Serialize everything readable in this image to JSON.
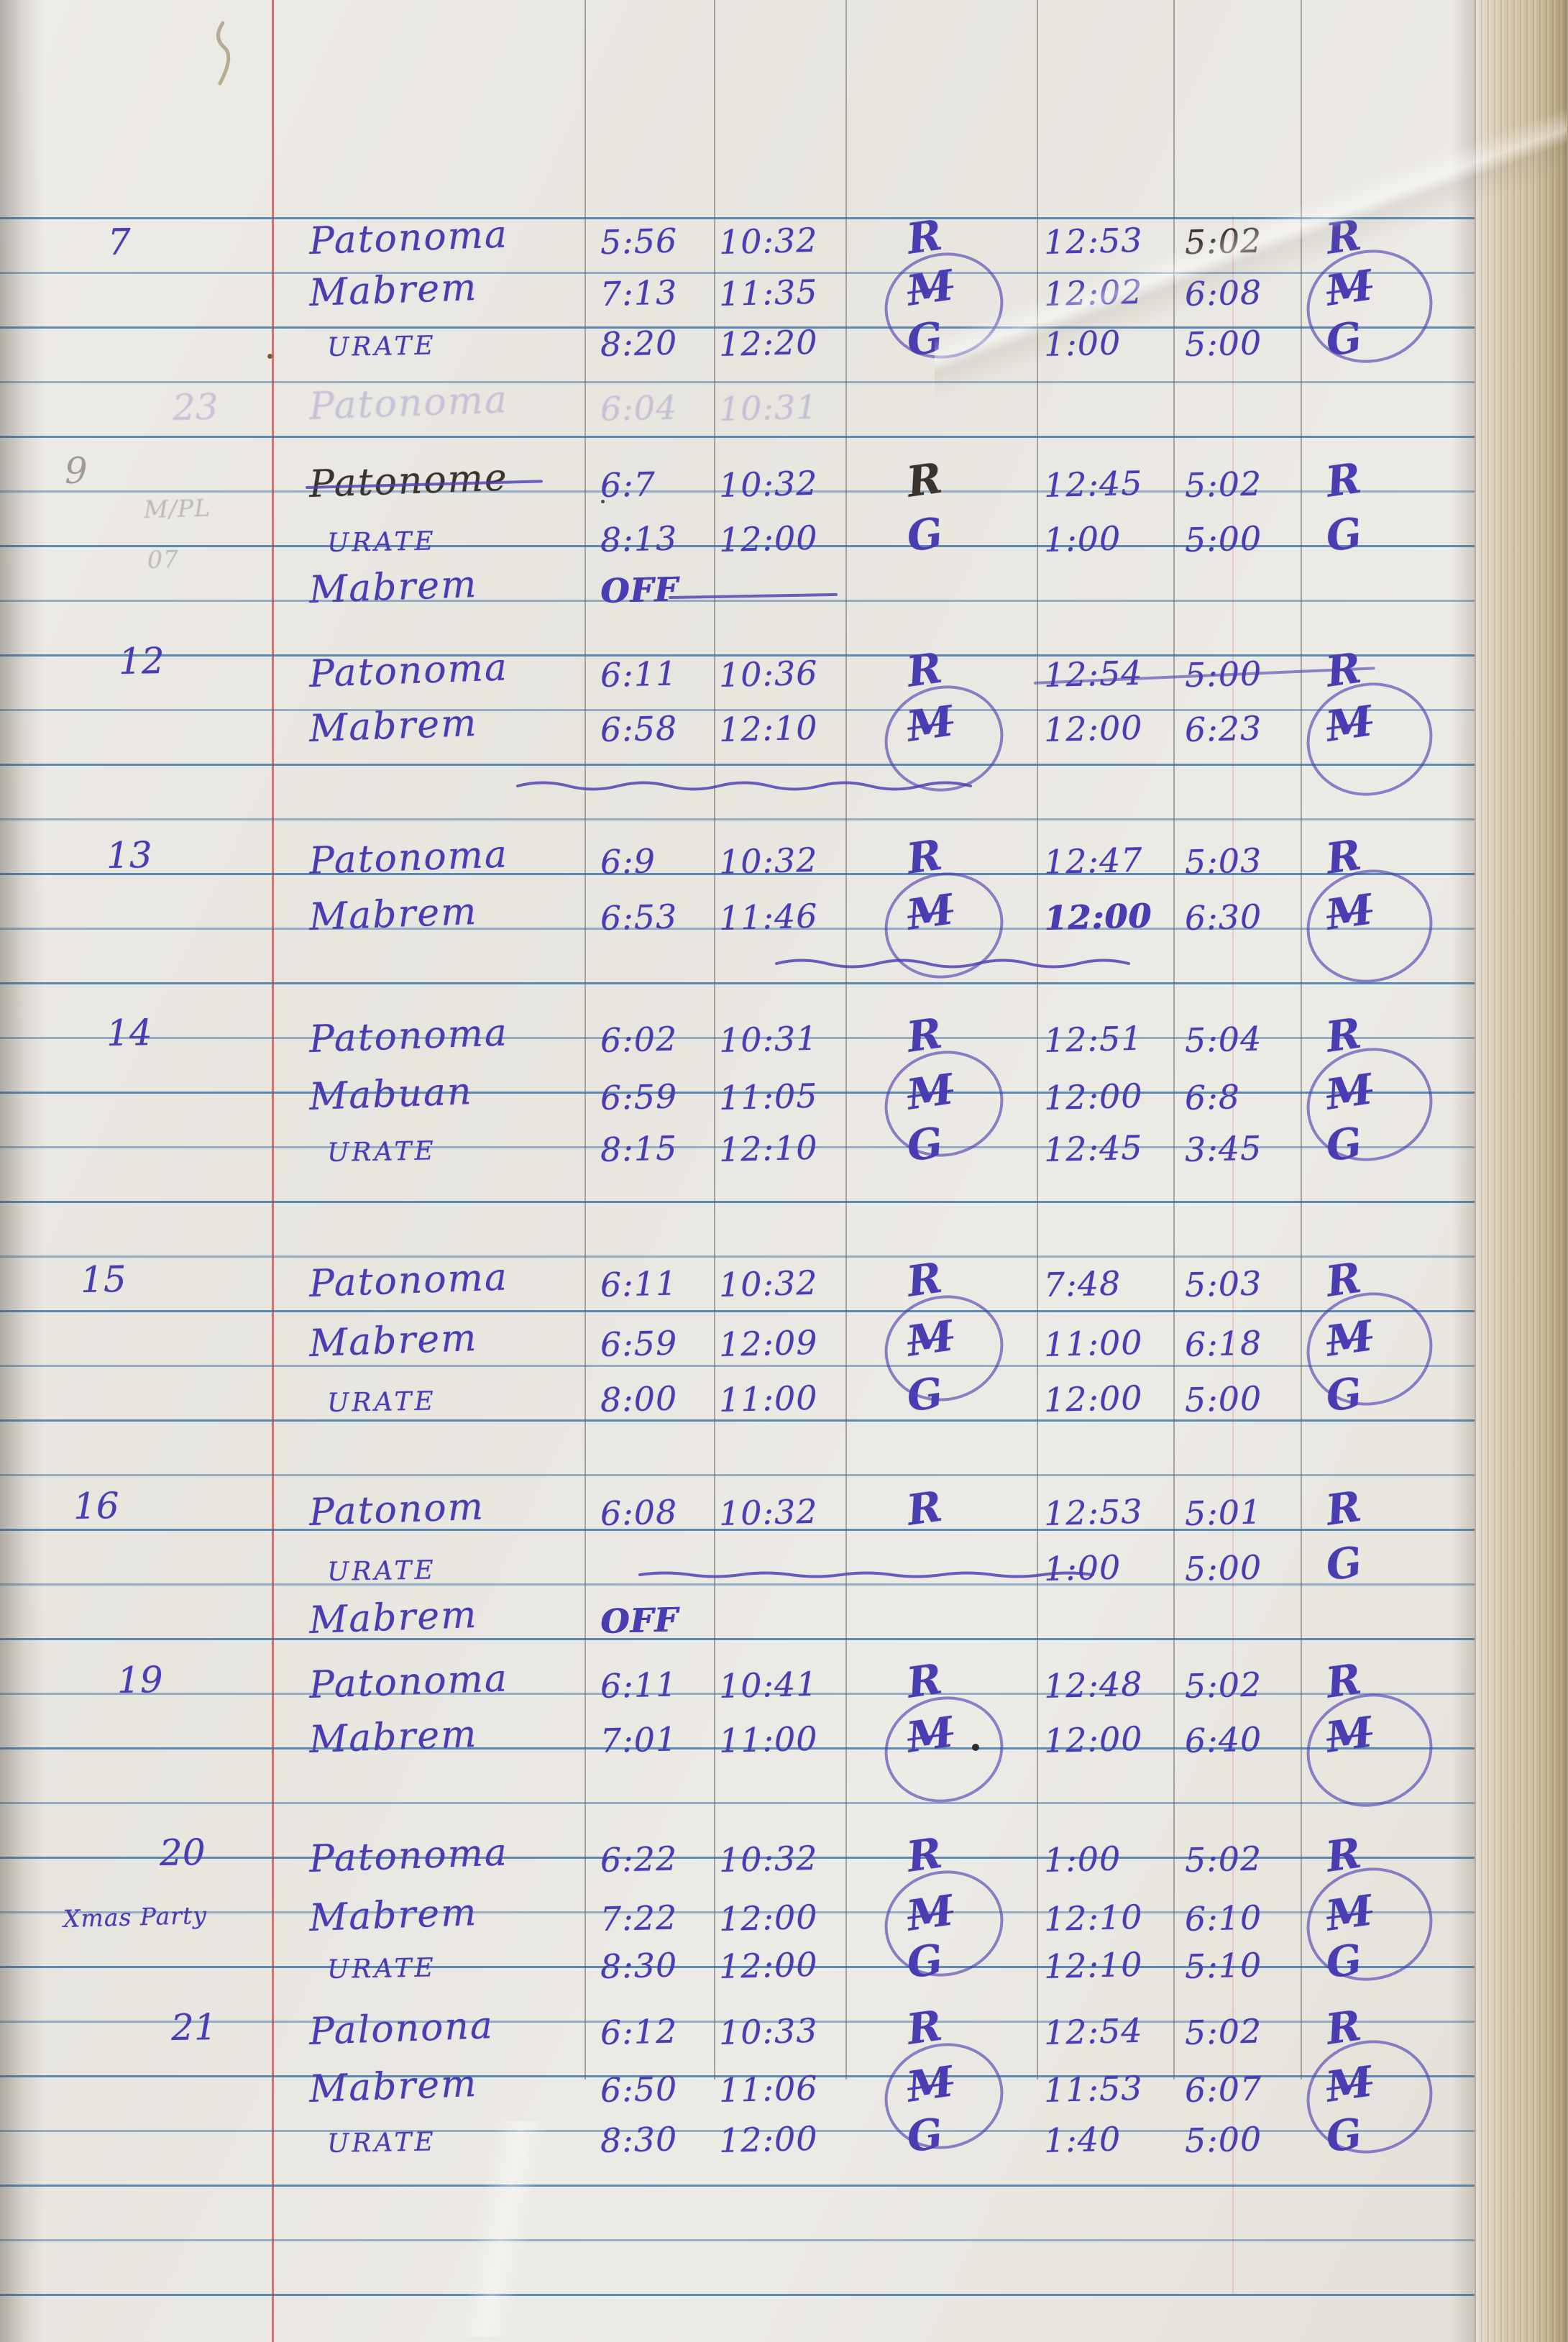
{
  "document": {
    "kind": "handwritten notebook time log page"
  },
  "colors": {
    "paper": "#eae7e1",
    "ruled_line": "#3470a8",
    "margin_line": "#d65055",
    "ink": "#4a3db2",
    "dark_ink": "#3a342f",
    "pencil": "#8a8782",
    "page_edge": "#d8cab0",
    "edge_line_teal": "#0d6878"
  },
  "log": {
    "entries": [
      {
        "day": "7",
        "loops": true,
        "rows": [
          {
            "name": "Patonoma",
            "t1": "5:56",
            "t2": "10:32",
            "s1": "R",
            "t3": "12:53",
            "t4": "5:02",
            "s2": "R",
            "t4_dark": true
          },
          {
            "name": "Mabrem",
            "t1": "7:13",
            "t2": "11:35",
            "s1": "M",
            "t3": "12:02",
            "t4": "6:08",
            "s2": "M"
          },
          {
            "name": "URATE",
            "t1": "8:20",
            "t2": "12:20",
            "s1": "G",
            "t3": "1:00",
            "t4": "5:00",
            "s2": "G"
          }
        ]
      },
      {
        "day": "9",
        "day_pencil": true,
        "rows": [
          {
            "name": "Patonome",
            "name_dark": true,
            "name_strike": true,
            "t1": "6:7",
            "t2": "10:32",
            "s1": "R",
            "s1_dark": true,
            "t3": "12:45",
            "t4": "5:02",
            "s2": "R"
          },
          {
            "name": "URATE",
            "t1": "8:13",
            "t2": "12:00",
            "s1": "G",
            "t3": "1:00",
            "t4": "5:00",
            "s2": "G"
          },
          {
            "name": "Mabrem",
            "t1": "OFF",
            "off_dash": true
          }
        ]
      },
      {
        "day": "12",
        "loops": true,
        "squiggle_below": true,
        "rows": [
          {
            "name": "Patonoma",
            "t1": "6:11",
            "t2": "10:36",
            "s1": "R",
            "t3": "12:54",
            "t4": "5:00",
            "s2": "R",
            "right_strike": true
          },
          {
            "name": "Mabrem",
            "t1": "6:58",
            "t2": "12:10",
            "s1": "M",
            "t3": "12:00",
            "t4": "6:23",
            "s2": "M"
          }
        ]
      },
      {
        "day": "13",
        "loops": true,
        "squiggle_below": true,
        "rows": [
          {
            "name": "Patonoma",
            "t1": "6:9",
            "t2": "10:32",
            "s1": "R",
            "t3": "12:47",
            "t4": "5:03",
            "s2": "R"
          },
          {
            "name": "Mabrem",
            "t1": "6:53",
            "t2": "11:46",
            "s1": "M",
            "t3": "12:00",
            "t3_bold": true,
            "t4": "6:30",
            "s2": "M"
          }
        ]
      },
      {
        "day": "14",
        "loops": true,
        "rows": [
          {
            "name": "Patonoma",
            "t1": "6:02",
            "t2": "10:31",
            "s1": "R",
            "t3": "12:51",
            "t4": "5:04",
            "s2": "R"
          },
          {
            "name": "Mabuan",
            "t1": "6:59",
            "t2": "11:05",
            "s1": "M",
            "t3": "12:00",
            "t4": "6:8",
            "s2": "M"
          },
          {
            "name": "URATE",
            "t1": "8:15",
            "t2": "12:10",
            "s1": "G",
            "t3": "12:45",
            "t4": "3:45",
            "s2": "G"
          }
        ]
      },
      {
        "day": "15",
        "loops": true,
        "rows": [
          {
            "name": "Patonoma",
            "t1": "6:11",
            "t2": "10:32",
            "s1": "R",
            "t3": "7:48",
            "t4": "5:03",
            "s2": "R"
          },
          {
            "name": "Mabrem",
            "t1": "6:59",
            "t2": "12:09",
            "s1": "M",
            "t3": "11:00",
            "t4": "6:18",
            "s2": "M"
          },
          {
            "name": "URATE",
            "t1": "8:00",
            "t2": "11:00",
            "s1": "G",
            "t3": "12:00",
            "t4": "5:00",
            "s2": "G"
          }
        ]
      },
      {
        "day": "16",
        "rows": [
          {
            "name": "Patonom",
            "t1": "6:08",
            "t2": "10:32",
            "s1": "R",
            "t3": "12:53",
            "t4": "5:01",
            "s2": "R"
          },
          {
            "name": "URATE",
            "t2_dash": true,
            "t3": "1:00",
            "t4": "5:00",
            "s2": "G"
          },
          {
            "name": "Mabrem",
            "t1": "OFF"
          }
        ]
      },
      {
        "day": "19",
        "loops": true,
        "rows": [
          {
            "name": "Patonoma",
            "t1": "6:11",
            "t2": "10:41",
            "s1": "R",
            "t3": "12:48",
            "t4": "5:02",
            "s2": "R"
          },
          {
            "name": "Mabrem",
            "t1": "7:01",
            "t2": "11:00",
            "s1": "M",
            "t3": "12:00",
            "t4": "6:40",
            "s2": "M"
          }
        ]
      },
      {
        "day": "20",
        "note": "Xmas Party",
        "loops": true,
        "rows": [
          {
            "name": "Patonoma",
            "t1": "6:22",
            "t2": "10:32",
            "s1": "R",
            "t3": "1:00",
            "t4": "5:02",
            "s2": "R"
          },
          {
            "name": "Mabrem",
            "t1": "7:22",
            "t2": "12:00",
            "s1": "M",
            "t3": "12:10",
            "t4": "6:10",
            "s2": "M"
          },
          {
            "name": "URATE",
            "t1": "8:30",
            "t2": "12:00",
            "s1": "G",
            "t3": "12:10",
            "t4": "5:10",
            "s2": "G"
          }
        ]
      },
      {
        "day": "21",
        "loops": true,
        "rows": [
          {
            "name": "Palonona",
            "t1": "6:12",
            "t2": "10:33",
            "s1": "R",
            "t3": "12:54",
            "t4": "5:02",
            "s2": "R"
          },
          {
            "name": "Mabrem",
            "t1": "6:50",
            "t2": "11:06",
            "s1": "M",
            "t3": "11:53",
            "t4": "6:07",
            "s2": "M"
          },
          {
            "name": "URATE",
            "t1": "8:30",
            "t2": "12:00",
            "s1": "G",
            "t3": "1:40",
            "t4": "5:00",
            "s2": "G"
          }
        ]
      }
    ]
  },
  "ghosts": {
    "bleedthrough_entry": {
      "day": "23",
      "name": "Patonoma",
      "t1": "6:04",
      "t2": "10:31"
    },
    "pencil_marks": [
      "M/PL",
      "07"
    ]
  }
}
